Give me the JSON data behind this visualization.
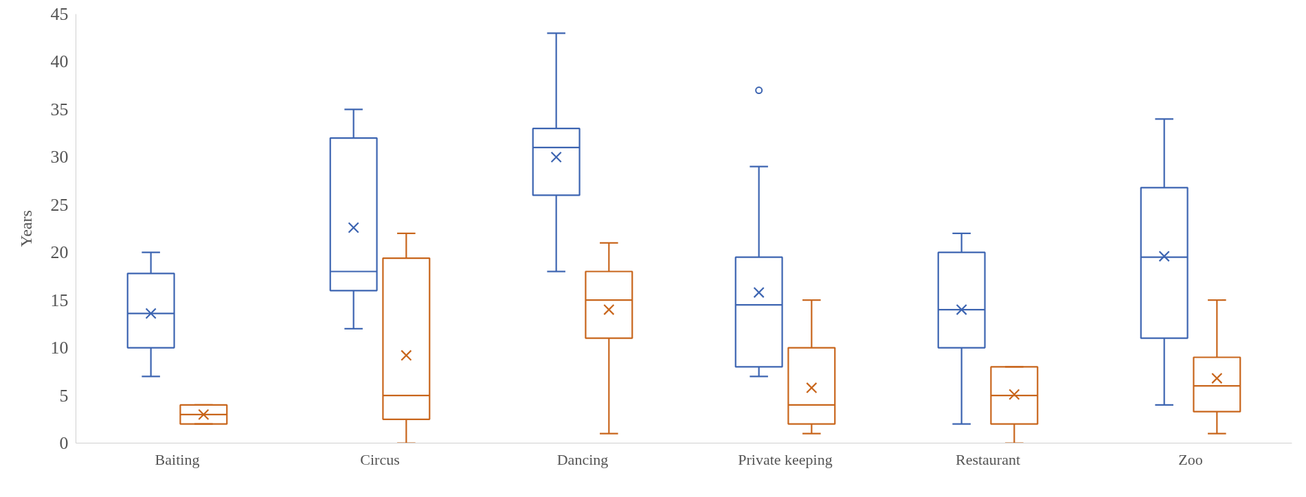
{
  "chart_data": {
    "type": "box",
    "ylabel": "Years",
    "categories": [
      "Baiting",
      "Circus",
      "Dancing",
      "Private keeping",
      "Restaurant",
      "Zoo"
    ],
    "ylim": [
      0,
      45
    ],
    "yticks": [
      0,
      5,
      10,
      15,
      20,
      25,
      30,
      35,
      40,
      45
    ],
    "grid": false,
    "marker": "cross",
    "series": [
      {
        "color": "#3c64b1",
        "boxes": [
          {
            "low": 7,
            "q1": 10,
            "median": 13.6,
            "q3": 17.8,
            "high": 20,
            "mean": 13.6
          },
          {
            "low": 12,
            "q1": 16,
            "median": 18,
            "q3": 32,
            "high": 35,
            "mean": 22.6
          },
          {
            "low": 18,
            "q1": 26,
            "median": 31,
            "q3": 33,
            "high": 43,
            "mean": 30
          },
          {
            "low": 7,
            "q1": 8,
            "median": 14.5,
            "q3": 19.5,
            "high": 29,
            "mean": 15.8,
            "outliers": [
              37
            ]
          },
          {
            "low": 2,
            "q1": 10,
            "median": 14,
            "q3": 20,
            "high": 22,
            "mean": 14
          },
          {
            "low": 4,
            "q1": 11,
            "median": 19.5,
            "q3": 26.8,
            "high": 34,
            "mean": 19.6
          }
        ]
      },
      {
        "color": "#c8651b",
        "boxes": [
          {
            "low": 2,
            "q1": 2,
            "median": 3,
            "q3": 4,
            "high": 4,
            "mean": 3
          },
          {
            "low": 0,
            "q1": 2.5,
            "median": 5,
            "q3": 19.4,
            "high": 22,
            "mean": 9.2
          },
          {
            "low": 1,
            "q1": 11,
            "median": 15,
            "q3": 18,
            "high": 21,
            "mean": 14
          },
          {
            "low": 1,
            "q1": 2,
            "median": 4,
            "q3": 10,
            "high": 15,
            "mean": 5.8
          },
          {
            "low": 0,
            "q1": 2,
            "median": 5,
            "q3": 8,
            "high": 8,
            "mean": 5.1
          },
          {
            "low": 1,
            "q1": 3.3,
            "median": 6,
            "q3": 9,
            "high": 15,
            "mean": 6.8
          }
        ]
      }
    ]
  }
}
